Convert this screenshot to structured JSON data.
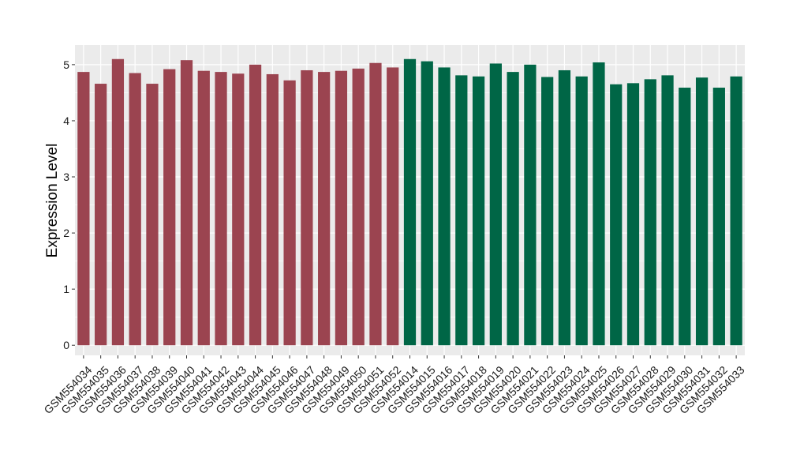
{
  "chart_data": {
    "type": "bar",
    "title": "",
    "xlabel": "",
    "ylabel": "Expression Level",
    "ylim": [
      -0.18,
      5.35
    ],
    "yticks": [
      0,
      1,
      2,
      3,
      4,
      5
    ],
    "grid": true,
    "legend": "none",
    "colors": {
      "group1": "#9B4450",
      "group2": "#006646",
      "panel_bg": "#EBEBEB",
      "grid": "#FFFFFF"
    },
    "categories": [
      "GSM554034",
      "GSM554035",
      "GSM554036",
      "GSM554037",
      "GSM554038",
      "GSM554039",
      "GSM554040",
      "GSM554041",
      "GSM554042",
      "GSM554043",
      "GSM554044",
      "GSM554045",
      "GSM554046",
      "GSM554047",
      "GSM554048",
      "GSM554049",
      "GSM554050",
      "GSM554051",
      "GSM554052",
      "GSM554014",
      "GSM554015",
      "GSM554016",
      "GSM554017",
      "GSM554018",
      "GSM554019",
      "GSM554020",
      "GSM554021",
      "GSM554022",
      "GSM554023",
      "GSM554024",
      "GSM554025",
      "GSM554026",
      "GSM554027",
      "GSM554028",
      "GSM554029",
      "GSM554030",
      "GSM554031",
      "GSM554032",
      "GSM554033"
    ],
    "values": [
      4.87,
      4.66,
      5.1,
      4.85,
      4.66,
      4.92,
      5.08,
      4.89,
      4.87,
      4.84,
      5.0,
      4.83,
      4.72,
      4.9,
      4.87,
      4.89,
      4.93,
      5.03,
      4.95,
      5.1,
      5.06,
      4.95,
      4.81,
      4.79,
      5.02,
      4.87,
      5.0,
      4.78,
      4.9,
      4.79,
      5.04,
      4.65,
      4.67,
      4.74,
      4.81,
      4.59,
      4.77,
      4.59,
      4.79
    ],
    "groups": [
      1,
      1,
      1,
      1,
      1,
      1,
      1,
      1,
      1,
      1,
      1,
      1,
      1,
      1,
      1,
      1,
      1,
      1,
      1,
      2,
      2,
      2,
      2,
      2,
      2,
      2,
      2,
      2,
      2,
      2,
      2,
      2,
      2,
      2,
      2,
      2,
      2,
      2,
      2
    ]
  }
}
